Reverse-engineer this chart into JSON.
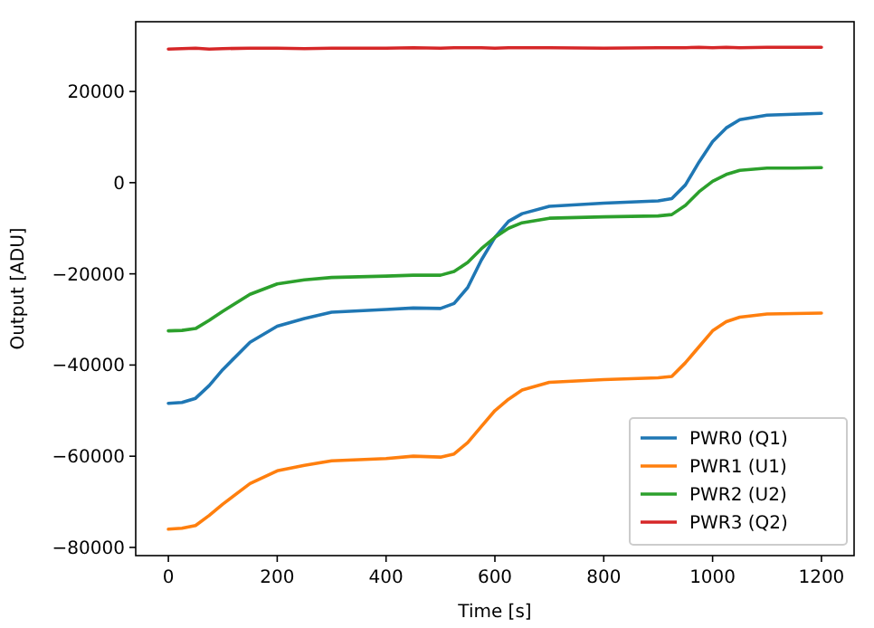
{
  "chart_data": {
    "type": "line",
    "xlabel": "Time [s]",
    "ylabel": "Output [ADU]",
    "xlim": [
      -60,
      1260
    ],
    "ylim": [
      -81800,
      35300
    ],
    "xticks": [
      0,
      200,
      400,
      600,
      800,
      1000,
      1200
    ],
    "yticks": [
      {
        "value": -80000,
        "label": "−80000"
      },
      {
        "value": -60000,
        "label": "−60000"
      },
      {
        "value": -40000,
        "label": "−40000"
      },
      {
        "value": -20000,
        "label": "−20000"
      },
      0,
      20000
    ],
    "legend": "bottom right",
    "grid": false,
    "marker": "none",
    "line_style": "solid",
    "x": [
      0,
      25,
      50,
      75,
      100,
      150,
      200,
      250,
      300,
      400,
      450,
      500,
      525,
      550,
      575,
      600,
      625,
      650,
      700,
      800,
      900,
      925,
      950,
      975,
      1000,
      1025,
      1050,
      1100,
      1150,
      1200
    ],
    "series": [
      {
        "name": "PWR0 (Q1)",
        "color": "#1f77b4",
        "values": [
          -48400,
          -48200,
          -47300,
          -44500,
          -41000,
          -35000,
          -31500,
          -29800,
          -28400,
          -27800,
          -27500,
          -27600,
          -26500,
          -23000,
          -17000,
          -12000,
          -8500,
          -6800,
          -5200,
          -4500,
          -4000,
          -3500,
          -500,
          4500,
          9000,
          12000,
          13800,
          14800,
          15000,
          15200
        ]
      },
      {
        "name": "PWR1 (U1)",
        "color": "#ff7f0e",
        "values": [
          -76000,
          -75800,
          -75200,
          -73000,
          -70500,
          -66000,
          -63200,
          -62000,
          -61000,
          -60500,
          -60000,
          -60200,
          -59500,
          -57000,
          -53500,
          -50000,
          -47500,
          -45500,
          -43800,
          -43200,
          -42800,
          -42500,
          -39500,
          -36000,
          -32500,
          -30500,
          -29500,
          -28800,
          -28700,
          -28600
        ]
      },
      {
        "name": "PWR2 (U2)",
        "color": "#2ca02c",
        "values": [
          -32500,
          -32400,
          -32000,
          -30200,
          -28200,
          -24500,
          -22200,
          -21300,
          -20800,
          -20500,
          -20300,
          -20300,
          -19500,
          -17500,
          -14500,
          -12000,
          -10000,
          -8800,
          -7800,
          -7500,
          -7300,
          -7000,
          -5000,
          -2000,
          300,
          1800,
          2700,
          3200,
          3200,
          3300
        ]
      },
      {
        "name": "PWR3 (Q2)",
        "color": "#d62728",
        "values": [
          29300,
          29400,
          29500,
          29300,
          29400,
          29500,
          29500,
          29400,
          29500,
          29500,
          29600,
          29500,
          29600,
          29600,
          29600,
          29500,
          29600,
          29600,
          29600,
          29500,
          29600,
          29600,
          29600,
          29700,
          29600,
          29700,
          29600,
          29700,
          29700,
          29700
        ]
      }
    ]
  }
}
